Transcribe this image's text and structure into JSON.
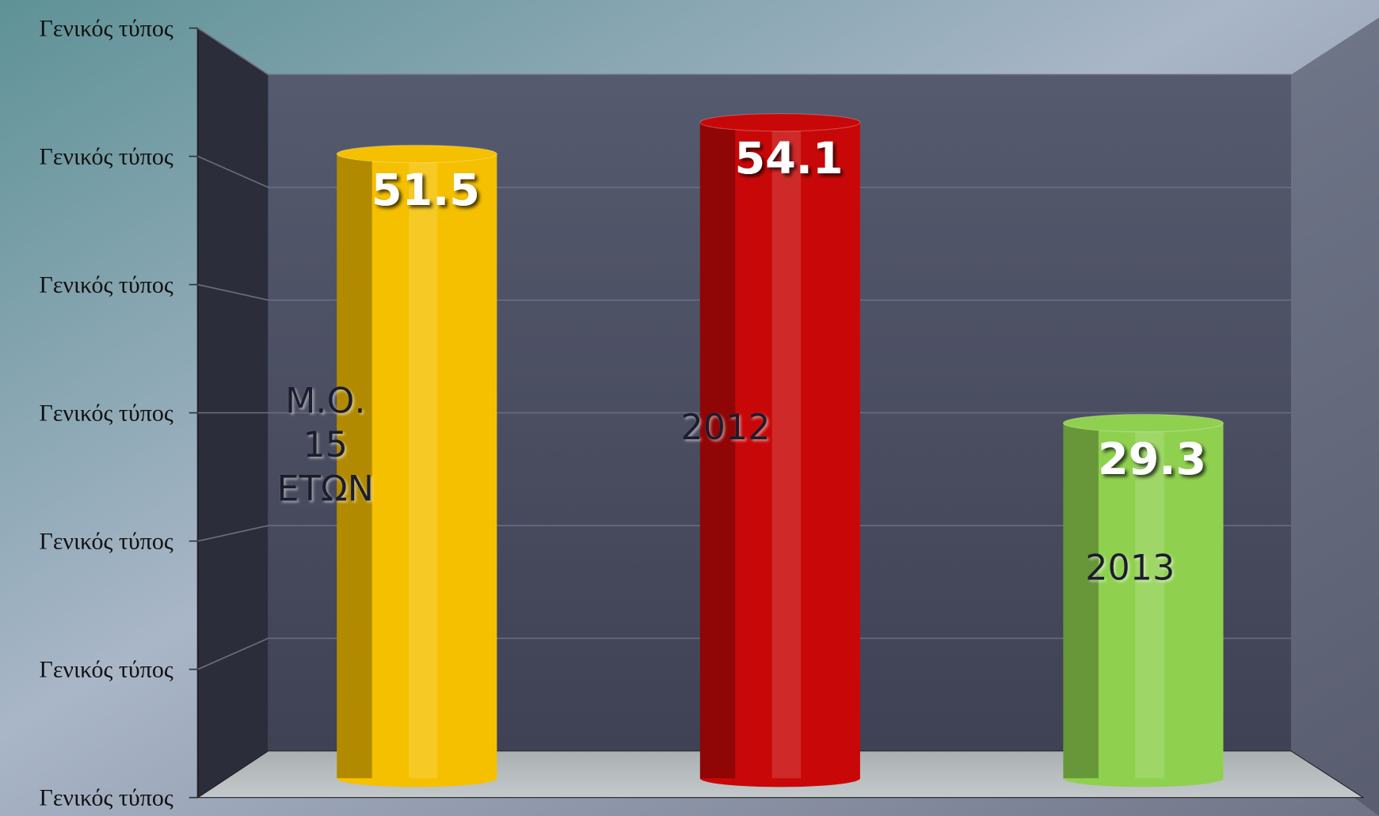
{
  "chart_data": {
    "type": "bar",
    "categories": [
      "Μ.Ο.\n15\nΕΤΩΝ",
      "2012",
      "2013"
    ],
    "values": [
      51.5,
      54.1,
      29.3
    ],
    "colors": [
      "#f5c000",
      "#c80808",
      "#8fd14f"
    ],
    "ylim": [
      0,
      60
    ],
    "yticks": [
      {
        "value": 0,
        "label": "Γενικός τύπος"
      },
      {
        "value": 10,
        "label": "Γενικός τύπος"
      },
      {
        "value": 20,
        "label": "Γενικός τύπος"
      },
      {
        "value": 30,
        "label": "Γενικός τύπος"
      },
      {
        "value": 40,
        "label": "Γενικός τύπος"
      },
      {
        "value": 50,
        "label": "Γενικός τύπος"
      },
      {
        "value": 60,
        "label": "Γενικός τύπος"
      }
    ],
    "grid": true
  }
}
